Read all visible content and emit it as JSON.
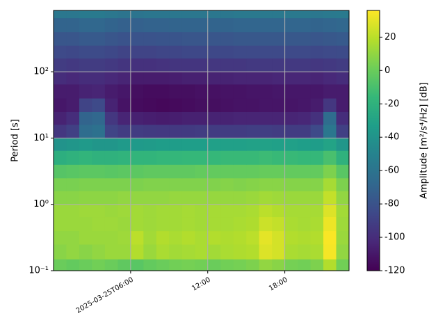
{
  "chart_data": {
    "type": "heatmap",
    "ylabel": "Period [s]",
    "colorbar_label": "Amplitude [m²/s⁴/Hz] [dB]",
    "xbins": [
      "2025-03-25T00:00",
      "2025-03-25T01:00",
      "2025-03-25T02:00",
      "2025-03-25T03:00",
      "2025-03-25T04:00",
      "2025-03-25T05:00",
      "2025-03-25T06:00",
      "2025-03-25T07:00",
      "2025-03-25T08:00",
      "2025-03-25T09:00",
      "2025-03-25T10:00",
      "2025-03-25T11:00",
      "2025-03-25T12:00",
      "2025-03-25T13:00",
      "2025-03-25T14:00",
      "2025-03-25T15:00",
      "2025-03-25T16:00",
      "2025-03-25T17:00",
      "2025-03-25T18:00",
      "2025-03-25T19:00",
      "2025-03-25T20:00",
      "2025-03-25T21:00",
      "2025-03-25T22:00",
      "2025-03-25T23:00"
    ],
    "ybins": [
      0.1,
      0.15,
      0.25,
      0.4,
      0.65,
      1,
      1.6,
      2.5,
      4,
      6.5,
      10,
      16,
      25,
      40,
      65,
      100,
      160,
      250,
      400,
      650,
      840
    ],
    "values": [
      [
        0,
        -2,
        0,
        2,
        0,
        -3,
        -5,
        -2,
        0,
        2,
        3,
        2,
        0,
        2,
        3,
        5,
        10,
        8,
        3,
        2,
        5,
        18,
        2
      ],
      [
        8,
        10,
        8,
        10,
        12,
        12,
        18,
        12,
        16,
        14,
        15,
        16,
        14,
        16,
        17,
        18,
        28,
        26,
        16,
        15,
        16,
        34,
        10
      ],
      [
        10,
        10,
        12,
        12,
        12,
        13,
        20,
        14,
        18,
        16,
        18,
        16,
        18,
        17,
        18,
        20,
        30,
        26,
        18,
        17,
        18,
        35,
        12
      ],
      [
        12,
        12,
        12,
        13,
        13,
        12,
        14,
        13,
        14,
        14,
        15,
        14,
        15,
        15,
        16,
        17,
        24,
        22,
        16,
        15,
        16,
        32,
        13
      ],
      [
        12,
        12,
        13,
        13,
        12,
        13,
        14,
        13,
        14,
        14,
        15,
        14,
        15,
        15,
        15,
        16,
        20,
        18,
        15,
        15,
        15,
        28,
        14
      ],
      [
        8,
        8,
        9,
        9,
        9,
        10,
        10,
        10,
        10,
        11,
        11,
        11,
        11,
        11,
        11,
        12,
        14,
        13,
        12,
        12,
        12,
        22,
        10
      ],
      [
        4,
        4,
        5,
        5,
        5,
        5,
        5,
        6,
        6,
        6,
        6,
        6,
        6,
        7,
        6,
        7,
        8,
        8,
        7,
        7,
        7,
        15,
        5
      ],
      [
        -6,
        -5,
        -4,
        -4,
        -5,
        -4,
        -4,
        -3,
        -3,
        -3,
        -3,
        -2,
        -2,
        -2,
        -2,
        -2,
        -1,
        -1,
        -2,
        -2,
        -2,
        5,
        -5
      ],
      [
        -22,
        -20,
        -18,
        -20,
        -20,
        -19,
        -18,
        -18,
        -17,
        -17,
        -16,
        -16,
        -16,
        -15,
        -15,
        -15,
        -14,
        -15,
        -15,
        -16,
        -16,
        -10,
        -20
      ],
      [
        -40,
        -38,
        -36,
        -38,
        -38,
        -36,
        -36,
        -35,
        -34,
        -34,
        -33,
        -33,
        -32,
        -32,
        -32,
        -31,
        -31,
        -32,
        -32,
        -33,
        -34,
        -30,
        -38
      ],
      [
        -95,
        -90,
        -65,
        -62,
        -88,
        -92,
        -92,
        -93,
        -94,
        -94,
        -93,
        -92,
        -92,
        -92,
        -92,
        -91,
        -91,
        -92,
        -92,
        -92,
        -85,
        -58,
        -90
      ],
      [
        -105,
        -100,
        -70,
        -68,
        -95,
        -104,
        -106,
        -107,
        -108,
        -107,
        -106,
        -106,
        -105,
        -105,
        -104,
        -104,
        -104,
        -104,
        -104,
        -103,
        -98,
        -65,
        -100
      ],
      [
        -110,
        -108,
        -88,
        -85,
        -105,
        -112,
        -115,
        -116,
        -117,
        -116,
        -115,
        -114,
        -114,
        -113,
        -112,
        -112,
        -111,
        -111,
        -111,
        -110,
        -108,
        -95,
        -108
      ],
      [
        -108,
        -108,
        -105,
        -104,
        -108,
        -110,
        -114,
        -115,
        -115,
        -114,
        -114,
        -113,
        -113,
        -112,
        -112,
        -111,
        -111,
        -110,
        -110,
        -110,
        -110,
        -108,
        -108
      ],
      [
        -100,
        -102,
        -100,
        -100,
        -102,
        -104,
        -108,
        -108,
        -108,
        -107,
        -106,
        -106,
        -105,
        -105,
        -104,
        -104,
        -104,
        -103,
        -103,
        -103,
        -104,
        -102,
        -100
      ],
      [
        -92,
        -94,
        -92,
        -92,
        -94,
        -96,
        -98,
        -98,
        -97,
        -96,
        -96,
        -96,
        -95,
        -95,
        -95,
        -94,
        -94,
        -94,
        -94,
        -94,
        -95,
        -94,
        -92
      ],
      [
        -85,
        -86,
        -84,
        -84,
        -86,
        -88,
        -88,
        -88,
        -87,
        -87,
        -86,
        -86,
        -86,
        -86,
        -85,
        -85,
        -85,
        -85,
        -85,
        -85,
        -86,
        -85,
        -84
      ],
      [
        -78,
        -78,
        -76,
        -76,
        -78,
        -80,
        -80,
        -80,
        -79,
        -79,
        -78,
        -78,
        -78,
        -78,
        -77,
        -77,
        -77,
        -77,
        -77,
        -77,
        -78,
        -77,
        -76
      ],
      [
        -70,
        -70,
        -68,
        -68,
        -70,
        -72,
        -72,
        -71,
        -71,
        -70,
        -70,
        -70,
        -70,
        -70,
        -69,
        -69,
        -69,
        -69,
        -69,
        -69,
        -70,
        -69,
        -68
      ],
      [
        -58,
        -58,
        -56,
        -56,
        -58,
        -60,
        -60,
        -59,
        -59,
        -58,
        -58,
        -58,
        -58,
        -58,
        -57,
        -57,
        -57,
        -57,
        -57,
        -57,
        -58,
        -57,
        -56
      ]
    ],
    "xlim": [
      "2025-03-25T00:00",
      "2025-03-25T23:00"
    ],
    "xticks": [
      "2025-03-25T06:00",
      {
        "value": "2025-03-25T12:00",
        "label": "12:00"
      },
      {
        "value": "2025-03-25T18:00",
        "label": "18:00"
      }
    ],
    "ylim": [
      0.1,
      840
    ],
    "ylog": true,
    "yticks": [
      {
        "value": 0.1,
        "label": "10⁻¹"
      },
      {
        "value": 1,
        "label": "10⁰"
      },
      {
        "value": 10,
        "label": "10¹"
      },
      {
        "value": 100,
        "label": "10²"
      }
    ],
    "grid": true,
    "clim": [
      -120,
      36
    ],
    "cticks": [
      -120,
      -100,
      -80,
      -60,
      -40,
      -20,
      0,
      20
    ],
    "colormap": [
      "#440154",
      "#482878",
      "#3e4989",
      "#31688e",
      "#26828e",
      "#1f9e89",
      "#35b779",
      "#6ece58",
      "#b5de2b",
      "#fde725"
    ]
  }
}
